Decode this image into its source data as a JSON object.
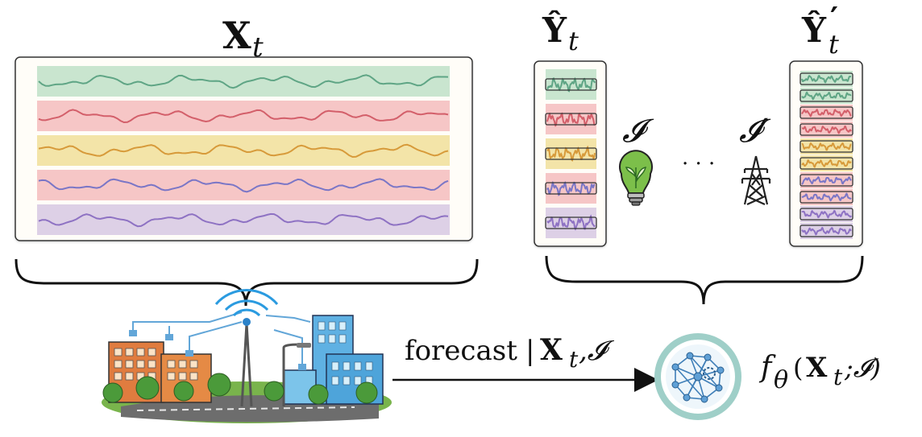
{
  "labels": {
    "input_symbol": "X",
    "input_sub": "t",
    "out_symbol": "Ŷ",
    "out_sub": "t",
    "out2_symbol": "Ŷ",
    "out2_sub": "t",
    "out2_prime": "′",
    "instruction": "𝓘",
    "instruction2": "𝓘′",
    "ellipsis": "· · ·",
    "arrow_text": "forecast",
    "arrow_cond_sep": "|",
    "arrow_X": "X",
    "arrow_t": "t",
    "arrow_comma_I": ",𝓘",
    "model_f": "f",
    "model_theta": "θ",
    "model_open": "(",
    "model_X": "X",
    "model_t": "t",
    "model_rest": ";𝓘)"
  },
  "colors": {
    "series": [
      "#c9e5cf",
      "#f6c6c6",
      "#f3e4a8",
      "#f6c6c6",
      "#ddd0e6"
    ],
    "lines": [
      "#5fa585",
      "#d35f6a",
      "#d79a3a",
      "#7a76c6",
      "#8e72c3"
    ],
    "model_ring": "#9fcfc8"
  },
  "icons": {
    "bulb": "lightbulb-leaf-icon",
    "tower": "power-tower-icon",
    "city": "smart-city-icon",
    "network": "neural-network-icon"
  }
}
